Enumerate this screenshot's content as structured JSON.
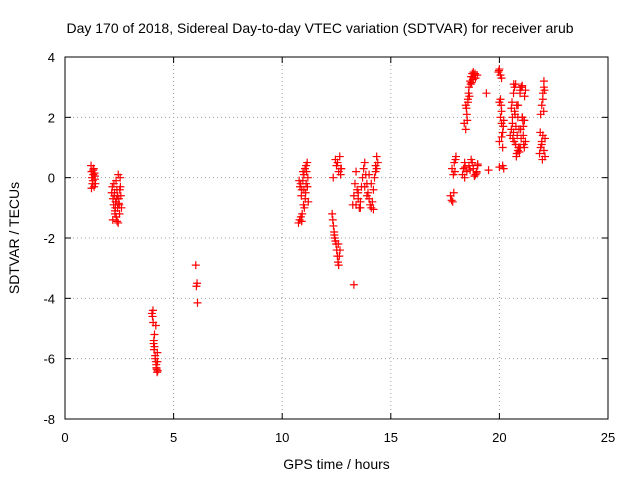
{
  "chart_data": {
    "type": "scatter",
    "title": "Day 170 of 2018, Sidereal Day-to-day VTEC variation (SDTVAR) for receiver arub",
    "xlabel": "GPS time / hours",
    "ylabel": "SDTVAR / TECUs",
    "xlim": [
      0,
      25
    ],
    "ylim": [
      -8,
      4
    ],
    "xticks": [
      0,
      5,
      10,
      15,
      20,
      25
    ],
    "yticks": [
      -8,
      -6,
      -4,
      -2,
      0,
      2,
      4
    ],
    "grid": true,
    "marker": "+",
    "color": "#ff0000",
    "series": [
      {
        "name": "SDTVAR",
        "x": [
          1.2,
          1.22,
          1.24,
          1.26,
          1.28,
          1.3,
          1.32,
          1.34,
          1.36,
          1.38,
          1.4,
          1.22,
          1.3,
          1.38,
          2.15,
          2.18,
          2.21,
          2.24,
          2.27,
          2.3,
          2.33,
          2.36,
          2.39,
          2.42,
          2.45,
          2.48,
          2.51,
          2.54,
          2.57,
          2.6,
          2.25,
          2.35,
          2.45,
          2.55,
          2.2,
          2.3,
          2.4,
          2.5,
          2.28,
          2.38,
          2.48,
          2.32,
          2.42,
          2.52,
          4.0,
          4.03,
          4.06,
          4.09,
          4.12,
          4.15,
          4.18,
          4.21,
          4.24,
          4.27,
          4.1,
          4.15,
          4.2,
          4.25,
          4.08,
          4.18,
          4.22,
          4.05,
          4.12,
          4.26,
          6.02,
          6.05,
          6.08,
          6.1,
          10.75,
          10.8,
          10.85,
          10.9,
          10.95,
          11.0,
          11.05,
          11.1,
          11.15,
          11.2,
          10.82,
          10.92,
          11.02,
          11.12,
          10.88,
          10.98,
          11.08,
          11.18,
          10.86,
          10.96,
          11.06,
          11.16,
          10.78,
          10.9,
          11.0,
          11.1,
          12.3,
          12.33,
          12.36,
          12.39,
          12.42,
          12.45,
          12.48,
          12.51,
          12.54,
          12.57,
          12.6,
          12.63,
          12.66,
          12.69,
          12.72,
          12.5,
          12.55,
          12.6,
          12.35,
          12.45,
          12.65,
          12.7,
          12.58,
          12.4,
          13.3,
          13.25,
          13.3,
          13.35,
          13.4,
          13.45,
          13.5,
          13.55,
          13.6,
          13.65,
          13.7,
          13.75,
          13.8,
          13.85,
          13.9,
          13.95,
          14.0,
          14.05,
          14.1,
          14.15,
          14.2,
          14.25,
          14.3,
          14.35,
          14.4,
          13.4,
          13.6,
          13.8,
          14.0,
          14.2,
          14.3,
          13.5,
          13.9,
          14.1,
          14.35,
          17.75,
          17.8,
          17.85,
          17.9,
          17.95,
          18.0,
          17.82,
          17.92,
          17.88,
          17.98,
          18.3,
          18.35,
          18.4,
          18.45,
          18.5,
          18.55,
          18.6,
          18.65,
          18.7,
          18.75,
          18.8,
          18.85,
          18.9,
          18.95,
          19.0,
          18.4,
          18.5,
          18.6,
          18.7,
          18.8,
          18.9,
          19.0,
          18.38,
          18.48,
          18.58,
          18.68,
          18.78,
          18.88,
          18.98,
          18.45,
          18.55,
          18.65,
          18.75,
          18.85,
          18.95,
          18.42,
          18.52,
          18.62,
          18.72,
          19.5,
          19.4,
          19.95,
          20.0,
          20.05,
          20.1,
          20.15,
          20.2,
          20.0,
          20.05,
          20.1,
          20.15,
          20.0,
          20.1,
          20.05,
          20.15,
          20.2,
          20.0,
          20.1,
          19.98,
          20.08,
          20.18,
          20.5,
          20.55,
          20.6,
          20.65,
          20.7,
          20.75,
          20.8,
          20.85,
          20.9,
          20.95,
          21.0,
          21.05,
          21.1,
          21.15,
          21.2,
          20.6,
          20.7,
          20.8,
          20.9,
          21.0,
          21.1,
          21.2,
          20.55,
          20.65,
          20.75,
          20.85,
          20.95,
          21.05,
          21.15,
          20.58,
          20.68,
          20.78,
          20.88,
          20.98,
          21.08,
          20.62,
          20.72,
          20.82,
          20.92,
          21.02,
          21.12,
          20.66,
          20.76,
          20.86,
          20.96,
          21.06,
          21.16,
          21.85,
          21.9,
          21.95,
          22.0,
          22.05,
          22.1,
          21.9,
          21.95,
          22.0,
          22.05,
          22.1,
          21.95,
          22.0,
          22.05,
          22.08,
          21.88,
          21.98,
          22.04
        ],
        "y": [
          0.4,
          0.2,
          0.0,
          -0.2,
          -0.1,
          0.1,
          0.3,
          -0.3,
          0.15,
          -0.05,
          -0.2,
          -0.35,
          0.25,
          0.05,
          -0.5,
          -0.3,
          -0.7,
          -0.9,
          -0.6,
          -1.1,
          -0.8,
          -1.3,
          -0.4,
          -1.0,
          -1.5,
          -0.7,
          -1.2,
          0.0,
          -0.6,
          -1.0,
          -0.2,
          -0.1,
          0.1,
          -0.3,
          -1.4,
          -1.2,
          -1.45,
          -0.9,
          -0.5,
          -0.7,
          -0.85,
          -1.0,
          -0.6,
          -0.4,
          -4.5,
          -4.6,
          -4.8,
          -5.4,
          -5.6,
          -5.9,
          -6.1,
          -6.3,
          -6.45,
          -6.4,
          -5.7,
          -6.0,
          -6.2,
          -5.8,
          -5.5,
          -4.9,
          -6.35,
          -4.4,
          -5.2,
          -6.1,
          -2.9,
          -3.6,
          -3.5,
          -4.15,
          -1.5,
          -1.4,
          -0.2,
          -0.4,
          -0.1,
          0.1,
          0.3,
          0.4,
          0.5,
          -0.8,
          -0.3,
          -1.2,
          -1.0,
          0.2,
          -0.6,
          -0.9,
          -0.5,
          0.0,
          -1.3,
          0.2,
          -0.7,
          -0.3,
          -0.1,
          -1.45,
          -0.4,
          -0.2,
          -1.2,
          -1.4,
          -1.6,
          -1.8,
          -2.0,
          -2.1,
          -2.2,
          -2.4,
          -2.6,
          -2.8,
          -2.9,
          -2.6,
          -2.4,
          0.1,
          0.3,
          0.4,
          0.5,
          0.2,
          0.0,
          0.6,
          0.7,
          0.3,
          -2.2,
          -1.9,
          -3.55,
          -0.9,
          -0.6,
          -0.2,
          0.2,
          -0.4,
          -0.7,
          -1.0,
          -0.8,
          -0.3,
          0.0,
          0.3,
          0.5,
          0.1,
          -0.2,
          -0.5,
          -0.7,
          -0.9,
          -1.0,
          -0.8,
          -0.4,
          0.0,
          0.4,
          0.7,
          0.5,
          -0.9,
          -1.0,
          -0.3,
          0.1,
          -1.05,
          0.2,
          -0.5,
          -0.6,
          -0.2,
          0.3,
          -0.6,
          -0.75,
          -0.8,
          -0.5,
          0.2,
          0.7,
          0.3,
          0.5,
          0.1,
          0.6,
          0.1,
          0.3,
          0.5,
          1.6,
          2.1,
          2.6,
          3.0,
          3.2,
          3.35,
          3.45,
          3.5,
          3.4,
          3.3,
          0.2,
          0.4,
          0.0,
          0.2,
          0.4,
          0.6,
          0.3,
          0.1,
          0.45,
          1.8,
          2.3,
          2.8,
          3.1,
          3.25,
          3.45,
          3.4,
          2.4,
          2.5,
          0.25,
          0.5,
          0.05,
          0.15,
          0.35,
          1.9,
          2.7,
          3.15,
          0.25,
          2.8,
          3.5,
          3.6,
          3.4,
          3.3,
          0.4,
          0.3,
          2.5,
          2.0,
          1.8,
          1.5,
          1.2,
          2.2,
          2.6,
          1.0,
          1.9,
          0.35,
          1.35,
          3.55,
          2.4,
          1.7,
          1.4,
          1.6,
          2.0,
          2.8,
          3.0,
          3.1,
          2.4,
          2.0,
          1.6,
          2.9,
          3.0,
          2.0,
          1.4,
          1.0,
          1.2,
          1.8,
          2.2,
          0.8,
          1.0,
          1.3,
          1.7,
          2.9,
          2.3,
          1.5,
          1.1,
          0.9,
          2.8,
          3.05,
          1.9,
          2.5,
          1.2,
          0.7,
          1.0,
          1.6,
          1.9,
          1.3,
          2.1,
          1.4,
          0.85,
          3.0,
          1.1,
          3.1,
          1.7,
          2.4,
          1.0,
          2.0,
          2.7,
          0.8,
          1.0,
          1.2,
          1.4,
          0.9,
          0.7,
          2.1,
          2.4,
          2.8,
          3.2,
          1.3,
          1.1,
          2.6,
          3.0,
          2.9,
          1.5,
          0.6,
          2.2
        ]
      }
    ]
  }
}
